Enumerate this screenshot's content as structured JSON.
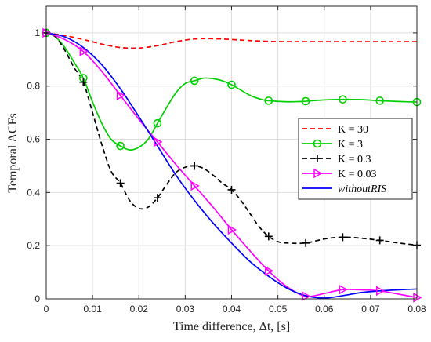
{
  "chart_data": {
    "type": "line",
    "xlabel": "Time difference, Δt, [s]",
    "ylabel": "Temporal ACFs",
    "xlim": [
      0,
      0.08
    ],
    "ylim": [
      0,
      1.1
    ],
    "x_ticks": [
      0,
      0.01,
      0.02,
      0.03,
      0.04,
      0.05,
      0.06,
      0.07,
      0.08
    ],
    "x_tick_labels": [
      "0",
      "0.01",
      "0.02",
      "0.03",
      "0.04",
      "0.05",
      "0.06",
      "0.07",
      "0.08"
    ],
    "y_ticks": [
      0,
      0.2,
      0.4,
      0.6,
      0.8,
      1
    ],
    "y_tick_labels": [
      "0",
      "0.2",
      "0.4",
      "0.6",
      "0.8",
      "1"
    ],
    "grid": true,
    "legend_position": "right",
    "series": [
      {
        "name": "K = 30",
        "color": "#ff0000",
        "dash": "dashed",
        "marker": "none",
        "x": [
          0,
          0.004,
          0.008,
          0.012,
          0.016,
          0.02,
          0.024,
          0.028,
          0.032,
          0.036,
          0.04,
          0.044,
          0.048,
          0.052,
          0.056,
          0.06,
          0.064,
          0.068,
          0.072,
          0.076,
          0.08
        ],
        "y": [
          1.0,
          0.99,
          0.975,
          0.958,
          0.945,
          0.943,
          0.952,
          0.967,
          0.977,
          0.978,
          0.975,
          0.971,
          0.968,
          0.967,
          0.967,
          0.967,
          0.967,
          0.967,
          0.967,
          0.967,
          0.967
        ]
      },
      {
        "name": "K = 3",
        "color": "#00d000",
        "dash": "solid",
        "marker": "circle",
        "x": [
          0,
          0.002,
          0.004,
          0.006,
          0.008,
          0.01,
          0.012,
          0.014,
          0.016,
          0.018,
          0.02,
          0.022,
          0.024,
          0.026,
          0.028,
          0.03,
          0.032,
          0.034,
          0.036,
          0.038,
          0.04,
          0.042,
          0.044,
          0.046,
          0.048,
          0.052,
          0.056,
          0.06,
          0.064,
          0.068,
          0.072,
          0.076,
          0.08
        ],
        "y": [
          1.0,
          0.985,
          0.945,
          0.89,
          0.83,
          0.74,
          0.66,
          0.6,
          0.575,
          0.56,
          0.57,
          0.6,
          0.66,
          0.72,
          0.775,
          0.81,
          0.82,
          0.83,
          0.828,
          0.82,
          0.805,
          0.785,
          0.765,
          0.752,
          0.745,
          0.741,
          0.743,
          0.748,
          0.75,
          0.749,
          0.745,
          0.742,
          0.74
        ],
        "marker_x": [
          0,
          0.008,
          0.016,
          0.024,
          0.032,
          0.04,
          0.048,
          0.056,
          0.064,
          0.072,
          0.08
        ],
        "marker_y": [
          1.0,
          0.83,
          0.575,
          0.66,
          0.82,
          0.805,
          0.745,
          0.743,
          0.75,
          0.745,
          0.74
        ]
      },
      {
        "name": "K = 0.3",
        "color": "#000000",
        "dash": "dashed",
        "marker": "plus",
        "x": [
          0,
          0.002,
          0.004,
          0.006,
          0.008,
          0.01,
          0.012,
          0.014,
          0.016,
          0.018,
          0.02,
          0.022,
          0.024,
          0.026,
          0.028,
          0.03,
          0.032,
          0.034,
          0.036,
          0.038,
          0.04,
          0.042,
          0.044,
          0.046,
          0.048,
          0.05,
          0.052,
          0.056,
          0.06,
          0.064,
          0.068,
          0.072,
          0.076,
          0.08
        ],
        "y": [
          1.0,
          0.985,
          0.935,
          0.87,
          0.815,
          0.7,
          0.58,
          0.48,
          0.435,
          0.37,
          0.34,
          0.345,
          0.38,
          0.43,
          0.475,
          0.495,
          0.5,
          0.49,
          0.465,
          0.435,
          0.41,
          0.37,
          0.32,
          0.27,
          0.235,
          0.215,
          0.21,
          0.21,
          0.225,
          0.232,
          0.228,
          0.22,
          0.21,
          0.202
        ],
        "marker_x": [
          0,
          0.008,
          0.016,
          0.024,
          0.032,
          0.04,
          0.048,
          0.056,
          0.064,
          0.072,
          0.08
        ],
        "marker_y": [
          1.0,
          0.815,
          0.435,
          0.38,
          0.5,
          0.41,
          0.235,
          0.21,
          0.232,
          0.22,
          0.202
        ]
      },
      {
        "name": "K = 0.03",
        "color": "#ff00ff",
        "dash": "solid",
        "marker": "triangle-right",
        "x": [
          0,
          0.004,
          0.008,
          0.012,
          0.016,
          0.02,
          0.024,
          0.028,
          0.032,
          0.036,
          0.04,
          0.044,
          0.048,
          0.052,
          0.056,
          0.06,
          0.064,
          0.068,
          0.072,
          0.076,
          0.08
        ],
        "y": [
          1.0,
          0.975,
          0.93,
          0.855,
          0.765,
          0.675,
          0.59,
          0.505,
          0.425,
          0.345,
          0.26,
          0.18,
          0.105,
          0.045,
          0.01,
          0.02,
          0.035,
          0.034,
          0.03,
          0.018,
          0.005
        ],
        "marker_x": [
          0,
          0.008,
          0.016,
          0.024,
          0.032,
          0.04,
          0.048,
          0.056,
          0.064,
          0.072,
          0.08
        ],
        "marker_y": [
          1.0,
          0.93,
          0.765,
          0.59,
          0.425,
          0.26,
          0.105,
          0.01,
          0.035,
          0.03,
          0.005
        ]
      },
      {
        "name": "withoutRIS",
        "color": "#0000ff",
        "dash": "solid",
        "marker": "none",
        "x": [
          0,
          0.004,
          0.008,
          0.012,
          0.016,
          0.02,
          0.024,
          0.028,
          0.032,
          0.036,
          0.04,
          0.044,
          0.048,
          0.052,
          0.056,
          0.06,
          0.064,
          0.068,
          0.072,
          0.076,
          0.08
        ],
        "y": [
          1.0,
          0.985,
          0.945,
          0.88,
          0.79,
          0.685,
          0.575,
          0.465,
          0.37,
          0.285,
          0.21,
          0.14,
          0.085,
          0.04,
          0.012,
          0.003,
          0.012,
          0.024,
          0.03,
          0.034,
          0.037
        ]
      }
    ]
  }
}
